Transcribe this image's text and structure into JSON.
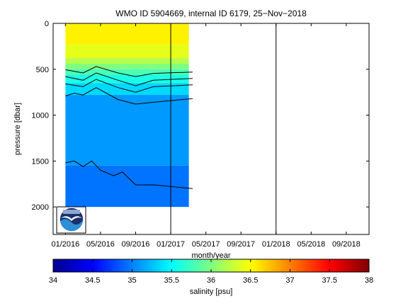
{
  "chart_data": {
    "type": "heatmap",
    "title": "WMO ID 5904669, internal ID 6179, 25−Nov−2018",
    "xlabel": "month/year",
    "ylabel": "pressure [dbar]",
    "x_ticks": [
      "01/2016",
      "05/2016",
      "09/2016",
      "01/2017",
      "05/2017",
      "09/2017",
      "01/2018",
      "05/2018",
      "09/2018"
    ],
    "x_range": [
      "2015-12-01",
      "2018-12-01"
    ],
    "y_ticks": [
      0,
      500,
      1000,
      1500,
      2000
    ],
    "y_range": [
      0,
      2300
    ],
    "y_reversed": true,
    "data_extent": {
      "start": "2016-01-01",
      "end": "2017-03-15",
      "max_pressure_start": 2000,
      "max_pressure_end": 1950
    },
    "year_markers": [
      "2017-01-01",
      "2018-01-01"
    ],
    "salinity_layers": [
      {
        "p_top": 0,
        "p_bottom": 230,
        "salinity": 36.55
      },
      {
        "p_top": 230,
        "p_bottom": 380,
        "salinity": 36.4
      },
      {
        "p_top": 380,
        "p_bottom": 440,
        "salinity": 36.2
      },
      {
        "p_top": 440,
        "p_bottom": 500,
        "salinity": 36.0
      },
      {
        "p_top": 500,
        "p_bottom": 560,
        "salinity": 35.8
      },
      {
        "p_top": 560,
        "p_bottom": 650,
        "salinity": 35.6
      },
      {
        "p_top": 650,
        "p_bottom": 780,
        "salinity": 35.35
      },
      {
        "p_top": 780,
        "p_bottom": 1550,
        "salinity": 35.1
      },
      {
        "p_top": 1550,
        "p_bottom": 2000,
        "salinity": 34.95
      }
    ],
    "contour_lines": [
      {
        "pts": [
          [
            0,
            660
          ],
          [
            2,
            690
          ],
          [
            3.5,
            610
          ],
          [
            6,
            700
          ],
          [
            8,
            750
          ],
          [
            10,
            690
          ],
          [
            14.5,
            670
          ]
        ]
      },
      {
        "pts": [
          [
            0,
            580
          ],
          [
            2,
            620
          ],
          [
            3.5,
            540
          ],
          [
            6,
            620
          ],
          [
            8,
            680
          ],
          [
            10,
            620
          ],
          [
            14.5,
            600
          ]
        ]
      },
      {
        "pts": [
          [
            0,
            505
          ],
          [
            2,
            540
          ],
          [
            3.5,
            470
          ],
          [
            6,
            540
          ],
          [
            8,
            580
          ],
          [
            10,
            545
          ],
          [
            14.5,
            530
          ]
        ]
      },
      {
        "pts": [
          [
            0,
            790
          ],
          [
            1,
            760
          ],
          [
            2,
            780
          ],
          [
            3.5,
            700
          ],
          [
            6,
            830
          ],
          [
            8,
            880
          ],
          [
            10,
            860
          ],
          [
            14.5,
            820
          ]
        ]
      },
      {
        "pts": [
          [
            0,
            1520
          ],
          [
            1,
            1500
          ],
          [
            2,
            1560
          ],
          [
            3,
            1500
          ],
          [
            4,
            1600
          ],
          [
            5.5,
            1660
          ],
          [
            6.5,
            1620
          ],
          [
            8,
            1760
          ],
          [
            10,
            1760
          ],
          [
            14.5,
            1800
          ]
        ]
      }
    ],
    "colorbar": {
      "label": "salinity [psu]",
      "min": 34,
      "max": 38,
      "tick_labels": [
        "34",
        "34.5",
        "35",
        "35.5",
        "36",
        "36.5",
        "37",
        "37.5",
        "38"
      ],
      "tick_values": [
        34,
        34.5,
        35,
        35.5,
        36,
        36.5,
        37,
        37.5,
        38
      ],
      "colormap": "jet"
    },
    "logo": "noaa-logo"
  }
}
